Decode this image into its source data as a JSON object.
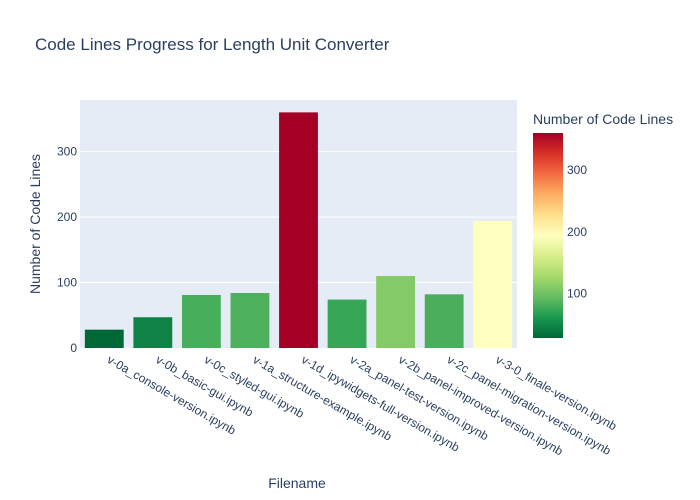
{
  "chart_data": {
    "type": "bar",
    "title": "Code Lines Progress for Length Unit Converter",
    "xlabel": "Filename",
    "ylabel": "Number of Code Lines",
    "categories": [
      "v-0a_console-version.ipynb",
      "v-0b_basic-gui.ipynb",
      "v-0c_styled-gui.ipynb",
      "v-1a_structure-example.ipynb",
      "v-1d_ipywidgets-full-version.ipynb",
      "v-2a_panel-test-version.ipynb",
      "v-2b_panel-improved-version.ipynb",
      "v-2c_panel-migration-version.ipynb",
      "v-3-0_finale-version.ipynb"
    ],
    "values": [
      28,
      47,
      81,
      84,
      360,
      74,
      110,
      82,
      194
    ],
    "ylim": [
      0,
      378.9
    ],
    "yticks": [
      0,
      100,
      200,
      300
    ],
    "grid": true,
    "colorscale": "RdYlGn (reversed)",
    "colorbar": {
      "title": "Number of Code Lines",
      "range": [
        28,
        360
      ],
      "ticks": [
        100,
        200,
        300
      ]
    },
    "colors": {
      "plot_bg": "#e5ecf6",
      "grid": "#ffffff",
      "text": "#2a3f5f"
    }
  }
}
